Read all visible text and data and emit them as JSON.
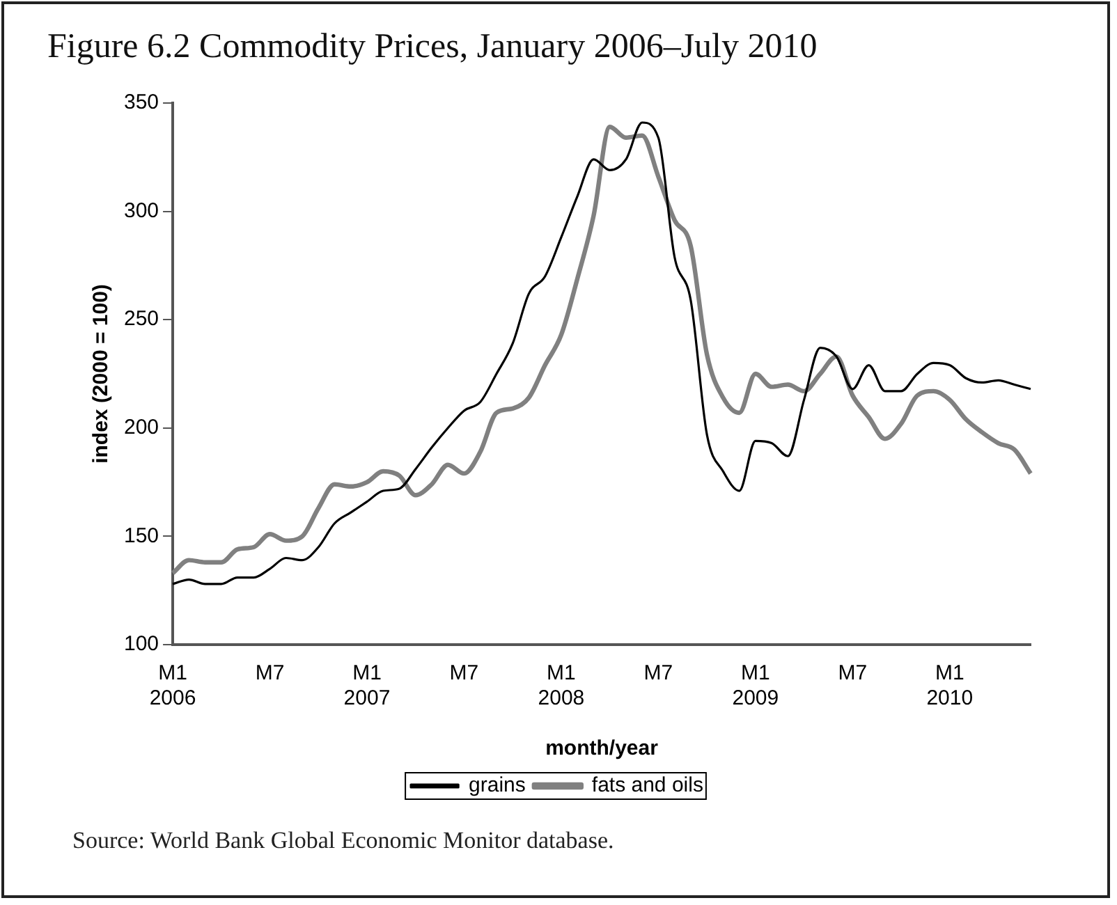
{
  "chart_data": {
    "type": "line",
    "title": "Figure 6.2 Commodity Prices, January 2006–July 2010",
    "xlabel": "month/year",
    "ylabel": "index (2000 = 100)",
    "categories": [
      "M1 2006",
      null,
      null,
      null,
      null,
      null,
      "M7",
      null,
      null,
      null,
      null,
      null,
      "M1 2007",
      null,
      null,
      null,
      null,
      null,
      "M7",
      null,
      null,
      null,
      null,
      null,
      "M1 2008",
      null,
      null,
      null,
      null,
      null,
      "M7",
      null,
      null,
      null,
      null,
      null,
      "M1 2009",
      null,
      null,
      null,
      null,
      null,
      "M7",
      null,
      null,
      null,
      null,
      null,
      "M1 2010",
      null,
      null,
      null,
      null,
      null
    ],
    "series": [
      {
        "name": "grains",
        "color": "#000000",
        "values": [
          128,
          130,
          128,
          128,
          131,
          131,
          135,
          140,
          139,
          145,
          156,
          161,
          166,
          171,
          172,
          181,
          191,
          200,
          208,
          212,
          225,
          239,
          262,
          270,
          288,
          307,
          324,
          319,
          324,
          341,
          334,
          279,
          259,
          197,
          180,
          171,
          194,
          193,
          187,
          213,
          237,
          233,
          218,
          229,
          217,
          217,
          225,
          230,
          229,
          223,
          221,
          222,
          220,
          218
        ]
      },
      {
        "name": "fats and oils",
        "color": "#808080",
        "values": [
          133,
          139,
          138,
          138,
          144,
          145,
          151,
          148,
          150,
          163,
          174,
          173,
          175,
          180,
          178,
          169,
          174,
          183,
          179,
          189,
          207,
          209,
          214,
          229,
          243,
          269,
          298,
          339,
          334,
          335,
          316,
          296,
          284,
          234,
          214,
          207,
          225,
          219,
          220,
          217,
          225,
          233,
          215,
          205,
          195,
          202,
          215,
          217,
          213,
          204,
          198,
          193,
          190,
          179
        ]
      }
    ],
    "ylim": [
      100,
      350
    ],
    "yticks": [
      100,
      150,
      200,
      250,
      300,
      350
    ],
    "grid": false,
    "legend": "bottom",
    "marker": "none",
    "line_style": "solid",
    "annotations": [
      "Source: World Bank Global Economic Monitor database."
    ]
  }
}
